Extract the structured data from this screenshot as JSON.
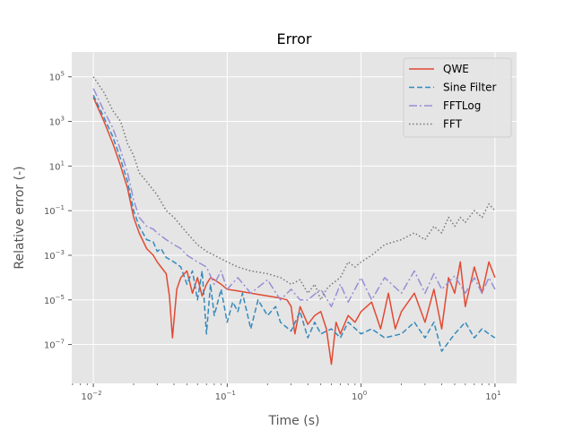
{
  "chart_data": {
    "type": "line",
    "title": "Error",
    "xlabel": "Time (s)",
    "ylabel": "Relative error (-)",
    "xscale": "log",
    "yscale": "log",
    "xlim": [
      0.0069,
      14.5
    ],
    "ylim": [
      1.8e-09,
      1300000.0
    ],
    "xticks": [
      0.01,
      0.1,
      1,
      10
    ],
    "xtick_labels": [
      {
        "base": "10",
        "exp": "−2"
      },
      {
        "base": "10",
        "exp": "−1"
      },
      {
        "base": "10",
        "exp": "0"
      },
      {
        "base": "10",
        "exp": "1"
      }
    ],
    "yticks": [
      1e-07,
      1e-05,
      0.001,
      0.1,
      10,
      1000,
      100000
    ],
    "ytick_labels": [
      {
        "base": "10",
        "exp": "−7"
      },
      {
        "base": "10",
        "exp": "−5"
      },
      {
        "base": "10",
        "exp": "−3"
      },
      {
        "base": "10",
        "exp": "−1"
      },
      {
        "base": "10",
        "exp": "1"
      },
      {
        "base": "10",
        "exp": "3"
      },
      {
        "base": "10",
        "exp": "5"
      }
    ],
    "grid": true,
    "legend_position": "top-right",
    "series": [
      {
        "name": "QWE",
        "color": "#E24A33",
        "dash": "solid",
        "x": [
          0.01,
          0.012,
          0.014,
          0.016,
          0.018,
          0.02,
          0.022,
          0.025,
          0.028,
          0.03,
          0.032,
          0.035,
          0.037,
          0.039,
          0.042,
          0.045,
          0.05,
          0.055,
          0.06,
          0.065,
          0.07,
          0.075,
          0.08,
          0.09,
          0.1,
          0.12,
          0.15,
          0.2,
          0.25,
          0.28,
          0.3,
          0.32,
          0.35,
          0.4,
          0.45,
          0.5,
          0.55,
          0.6,
          0.65,
          0.7,
          0.8,
          0.9,
          1.0,
          1.2,
          1.4,
          1.6,
          1.8,
          2.0,
          2.5,
          3.0,
          3.5,
          4.0,
          4.5,
          5.0,
          5.5,
          6.0,
          7.0,
          8.0,
          9.0,
          10.0
        ],
        "y": [
          12000.0,
          1000.0,
          100.0,
          10,
          1,
          0.05,
          0.01,
          0.002,
          0.001,
          0.0005,
          0.0003,
          0.00015,
          1.5e-05,
          2e-07,
          3e-05,
          0.0001,
          0.0002,
          2e-05,
          0.0001,
          1.5e-05,
          5e-05,
          0.0001,
          8e-05,
          5e-05,
          3e-05,
          2.5e-05,
          2e-05,
          1.5e-05,
          1.2e-05,
          1e-05,
          5e-06,
          3e-07,
          5e-06,
          8e-07,
          2e-06,
          3e-06,
          5e-07,
          1.3e-08,
          1e-06,
          3e-07,
          2e-06,
          1e-06,
          3e-06,
          8e-06,
          5e-07,
          2e-05,
          5e-07,
          3e-06,
          2e-05,
          1e-06,
          3e-05,
          5e-07,
          0.0001,
          2e-05,
          0.0005,
          5e-06,
          0.0003,
          2e-05,
          0.0005,
          0.0001
        ]
      },
      {
        "name": "Sine Filter",
        "color": "#348ABD",
        "dash": "dashed",
        "x": [
          0.01,
          0.012,
          0.014,
          0.016,
          0.018,
          0.02,
          0.022,
          0.025,
          0.028,
          0.03,
          0.032,
          0.035,
          0.04,
          0.045,
          0.05,
          0.055,
          0.06,
          0.065,
          0.07,
          0.075,
          0.08,
          0.09,
          0.1,
          0.11,
          0.12,
          0.13,
          0.15,
          0.17,
          0.2,
          0.23,
          0.25,
          0.3,
          0.35,
          0.4,
          0.45,
          0.5,
          0.6,
          0.7,
          0.8,
          1.0,
          1.2,
          1.5,
          2.0,
          2.5,
          3.0,
          3.5,
          4.0,
          5.0,
          6.0,
          7.0,
          8.0,
          9.0,
          10.0
        ],
        "y": [
          15000.0,
          1500.0,
          200.0,
          20,
          2,
          0.1,
          0.02,
          0.005,
          0.004,
          0.0015,
          0.002,
          0.0008,
          0.0005,
          0.0003,
          5e-05,
          0.0002,
          1e-05,
          0.0002,
          3e-07,
          5e-05,
          2e-06,
          3e-05,
          1e-06,
          8e-06,
          3e-06,
          2e-05,
          5e-07,
          1e-05,
          2e-06,
          5e-06,
          1e-06,
          4e-07,
          3e-06,
          2e-07,
          1e-06,
          3e-07,
          5e-07,
          2e-07,
          1e-06,
          3e-07,
          5e-07,
          2e-07,
          3e-07,
          1e-06,
          2e-07,
          1e-06,
          5e-08,
          3e-07,
          1e-06,
          2e-07,
          5e-07,
          3e-07,
          2e-07
        ]
      },
      {
        "name": "FFTLog",
        "color": "#988ED5",
        "dash": "dashdot",
        "x": [
          0.01,
          0.012,
          0.014,
          0.016,
          0.018,
          0.02,
          0.022,
          0.025,
          0.028,
          0.03,
          0.035,
          0.04,
          0.045,
          0.05,
          0.06,
          0.07,
          0.08,
          0.09,
          0.1,
          0.12,
          0.15,
          0.2,
          0.25,
          0.3,
          0.35,
          0.4,
          0.5,
          0.6,
          0.7,
          0.8,
          1.0,
          1.2,
          1.5,
          2.0,
          2.5,
          3.0,
          3.5,
          4.0,
          5.0,
          6.0,
          7.0,
          8.0,
          9.0,
          10.0
        ],
        "y": [
          30000.0,
          3000.0,
          500.0,
          50,
          5,
          0.3,
          0.05,
          0.02,
          0.015,
          0.01,
          0.005,
          0.003,
          0.002,
          0.001,
          0.0005,
          0.0003,
          5e-05,
          0.0002,
          3e-05,
          0.0001,
          2e-05,
          8e-05,
          1e-05,
          3e-05,
          1e-05,
          1e-05,
          3e-05,
          5e-06,
          5e-05,
          8e-06,
          0.0001,
          1e-05,
          0.0001,
          2e-05,
          0.0002,
          2e-05,
          0.00015,
          3e-05,
          0.00012,
          2e-05,
          0.0001,
          2e-05,
          0.0001,
          3e-05
        ]
      },
      {
        "name": "FFT",
        "color": "#777777",
        "dash": "dotted",
        "x": [
          0.01,
          0.012,
          0.014,
          0.016,
          0.018,
          0.02,
          0.022,
          0.025,
          0.03,
          0.035,
          0.04,
          0.05,
          0.06,
          0.07,
          0.08,
          0.1,
          0.12,
          0.15,
          0.2,
          0.25,
          0.3,
          0.35,
          0.4,
          0.45,
          0.5,
          0.55,
          0.6,
          0.7,
          0.8,
          0.9,
          1.0,
          1.2,
          1.5,
          2.0,
          2.5,
          3.0,
          3.5,
          4.0,
          4.5,
          5.0,
          5.5,
          6.0,
          7.0,
          8.0,
          9.0,
          10.0
        ],
        "y": [
          100000.0,
          20000.0,
          3000.0,
          1000.0,
          100,
          30,
          5,
          2,
          0.5,
          0.1,
          0.05,
          0.01,
          0.003,
          0.0015,
          0.001,
          0.0005,
          0.0003,
          0.0002,
          0.00015,
          0.0001,
          5e-05,
          8e-05,
          2e-05,
          5e-05,
          1e-05,
          3e-05,
          5e-05,
          0.0001,
          0.0005,
          0.0003,
          0.0005,
          0.001,
          0.003,
          0.005,
          0.01,
          0.005,
          0.02,
          0.01,
          0.05,
          0.02,
          0.05,
          0.03,
          0.1,
          0.05,
          0.2,
          0.1
        ]
      }
    ]
  }
}
